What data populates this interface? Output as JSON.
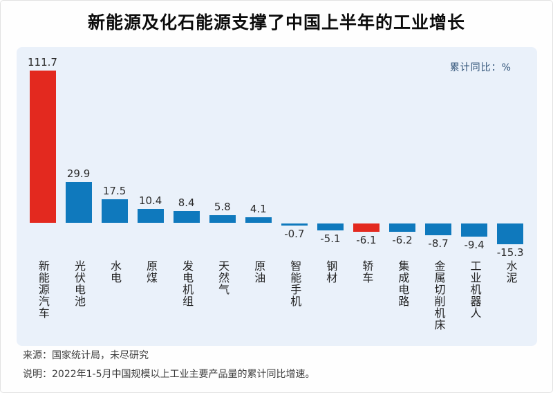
{
  "title": "新能源及化石能源支撑了中国上半年的工业增长",
  "panel": {
    "unit_label": "累计同比：%"
  },
  "footer": {
    "source": "来源：国家统计局，未尽研究",
    "note": "说明：2022年1-5月中国规模以上工业主要产品量的累计同比增速。"
  },
  "colors": {
    "bar_default": "#0f79bd",
    "bar_highlight": "#e3291f",
    "panel_background": "#eaf1fa",
    "unit_label_text": "#33557a"
  },
  "chart_data": {
    "type": "bar",
    "title": "新能源及化石能源支撑了中国上半年的工业增长",
    "unit_label": "累计同比：%",
    "categories": [
      "新能源汽车",
      "光伏电池",
      "水电",
      "原煤",
      "发电机组",
      "天然气",
      "原油",
      "智能手机",
      "钢材",
      "轿车",
      "集成电路",
      "金属切削机床",
      "工业机器人",
      "水泥"
    ],
    "values": [
      111.7,
      29.9,
      17.5,
      10.4,
      8.4,
      5.8,
      4.1,
      -0.7,
      -5.1,
      -6.1,
      -6.2,
      -8.7,
      -9.4,
      -15.3
    ],
    "highlight_indices": [
      0,
      9
    ],
    "highlighted_categories": [
      "新能源汽车",
      "轿车"
    ],
    "bar_color": "#0f79bd",
    "highlight_color": "#e3291f",
    "xlabel": "",
    "ylabel": "累计同比：%",
    "ylim": [
      -20,
      120
    ],
    "grid": false,
    "value_labels": true,
    "legend_position": "top-right",
    "source": "来源：国家统计局，未尽研究",
    "note": "说明：2022年1-5月中国规模以上工业主要产品量的累计同比增速。"
  }
}
